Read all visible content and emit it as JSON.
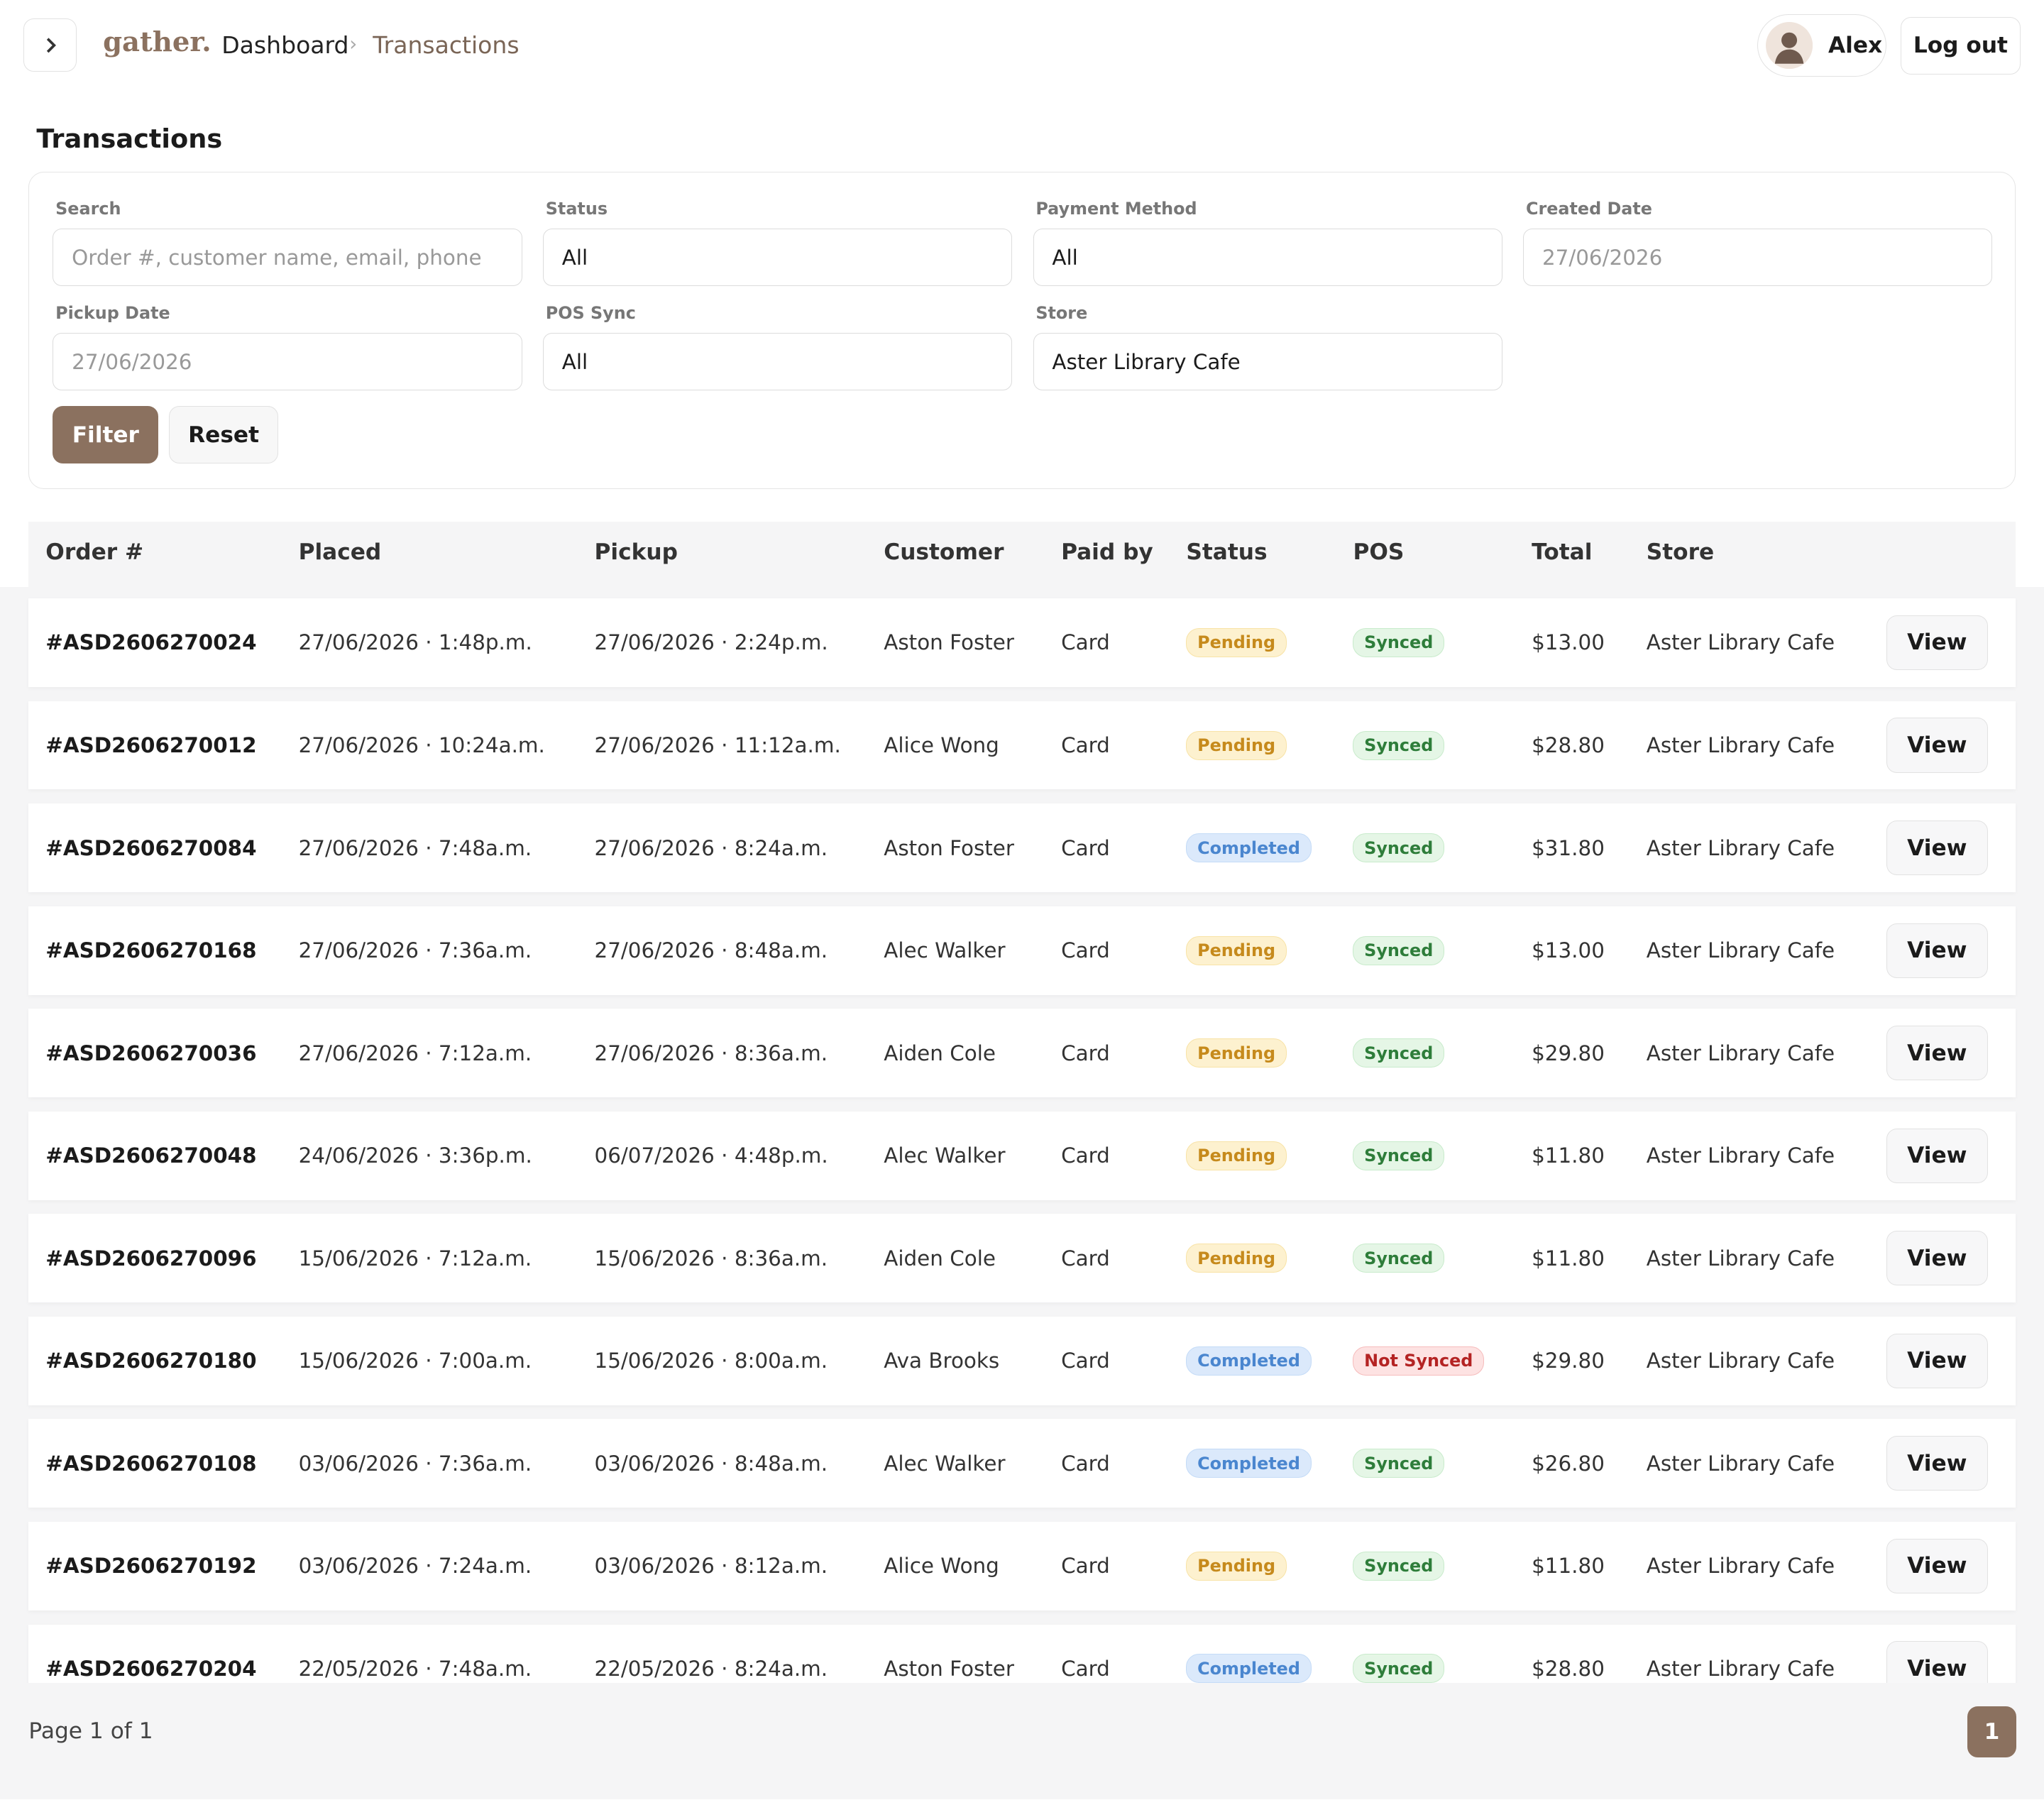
{
  "nav": {
    "brand": "gather.",
    "breadcrumb": [
      "Dashboard",
      "Transactions"
    ],
    "user": "Alex",
    "logout": "Log out"
  },
  "page_title": "Transactions",
  "filters": {
    "fields": [
      {
        "label": "Search",
        "placeholder": "Order #, customer name, email, phone"
      },
      {
        "label": "Status",
        "value": "All"
      },
      {
        "label": "Payment Method",
        "value": "All"
      },
      {
        "label": "Created Date",
        "value": "27/06/2026"
      },
      {
        "label": "Pickup Date",
        "value": "27/06/2026"
      },
      {
        "label": "POS Sync",
        "value": "All"
      },
      {
        "label": "Store",
        "value": "Aster Library Cafe"
      }
    ],
    "buttons": [
      "Filter",
      "Reset"
    ]
  },
  "table": {
    "columns": [
      "Order #",
      "Placed",
      "Pickup",
      "Customer",
      "Paid by",
      "Status",
      "POS",
      "Total",
      "Store"
    ],
    "action": "View",
    "rows": [
      [
        "#ASD2606270024",
        "27/06/2026 · 1:48p.m.",
        "27/06/2026 · 2:24p.m.",
        "Aston Foster",
        "Card",
        "Pending",
        "Synced",
        "$13.00",
        "Aster Library Cafe"
      ],
      [
        "#ASD2606270012",
        "27/06/2026 · 10:24a.m.",
        "27/06/2026 · 11:12a.m.",
        "Alice Wong",
        "Card",
        "Pending",
        "Synced",
        "$28.80",
        "Aster Library Cafe"
      ],
      [
        "#ASD2606270084",
        "27/06/2026 · 7:48a.m.",
        "27/06/2026 · 8:24a.m.",
        "Aston Foster",
        "Card",
        "Completed",
        "Synced",
        "$31.80",
        "Aster Library Cafe"
      ],
      [
        "#ASD2606270168",
        "27/06/2026 · 7:36a.m.",
        "27/06/2026 · 8:48a.m.",
        "Alec Walker",
        "Card",
        "Pending",
        "Synced",
        "$13.00",
        "Aster Library Cafe"
      ],
      [
        "#ASD2606270036",
        "27/06/2026 · 7:12a.m.",
        "27/06/2026 · 8:36a.m.",
        "Aiden Cole",
        "Card",
        "Pending",
        "Synced",
        "$29.80",
        "Aster Library Cafe"
      ],
      [
        "#ASD2606270048",
        "24/06/2026 · 3:36p.m.",
        "06/07/2026 · 4:48p.m.",
        "Alec Walker",
        "Card",
        "Pending",
        "Synced",
        "$11.80",
        "Aster Library Cafe"
      ],
      [
        "#ASD2606270096",
        "15/06/2026 · 7:12a.m.",
        "15/06/2026 · 8:36a.m.",
        "Aiden Cole",
        "Card",
        "Pending",
        "Synced",
        "$11.80",
        "Aster Library Cafe"
      ],
      [
        "#ASD2606270180",
        "15/06/2026 · 7:00a.m.",
        "15/06/2026 · 8:00a.m.",
        "Ava Brooks",
        "Card",
        "Completed",
        "Not Synced",
        "$29.80",
        "Aster Library Cafe"
      ],
      [
        "#ASD2606270108",
        "03/06/2026 · 7:36a.m.",
        "03/06/2026 · 8:48a.m.",
        "Alec Walker",
        "Card",
        "Completed",
        "Synced",
        "$26.80",
        "Aster Library Cafe"
      ],
      [
        "#ASD2606270192",
        "03/06/2026 · 7:24a.m.",
        "03/06/2026 · 8:12a.m.",
        "Alice Wong",
        "Card",
        "Pending",
        "Synced",
        "$11.80",
        "Aster Library Cafe"
      ],
      [
        "#ASD2606270204",
        "22/05/2026 · 7:48a.m.",
        "22/05/2026 · 8:24a.m.",
        "Aston Foster",
        "Card",
        "Completed",
        "Synced",
        "$28.80",
        "Aster Library Cafe"
      ]
    ]
  },
  "footer": {
    "page_info": "Page 1 of 1",
    "pages": [
      "1"
    ]
  }
}
